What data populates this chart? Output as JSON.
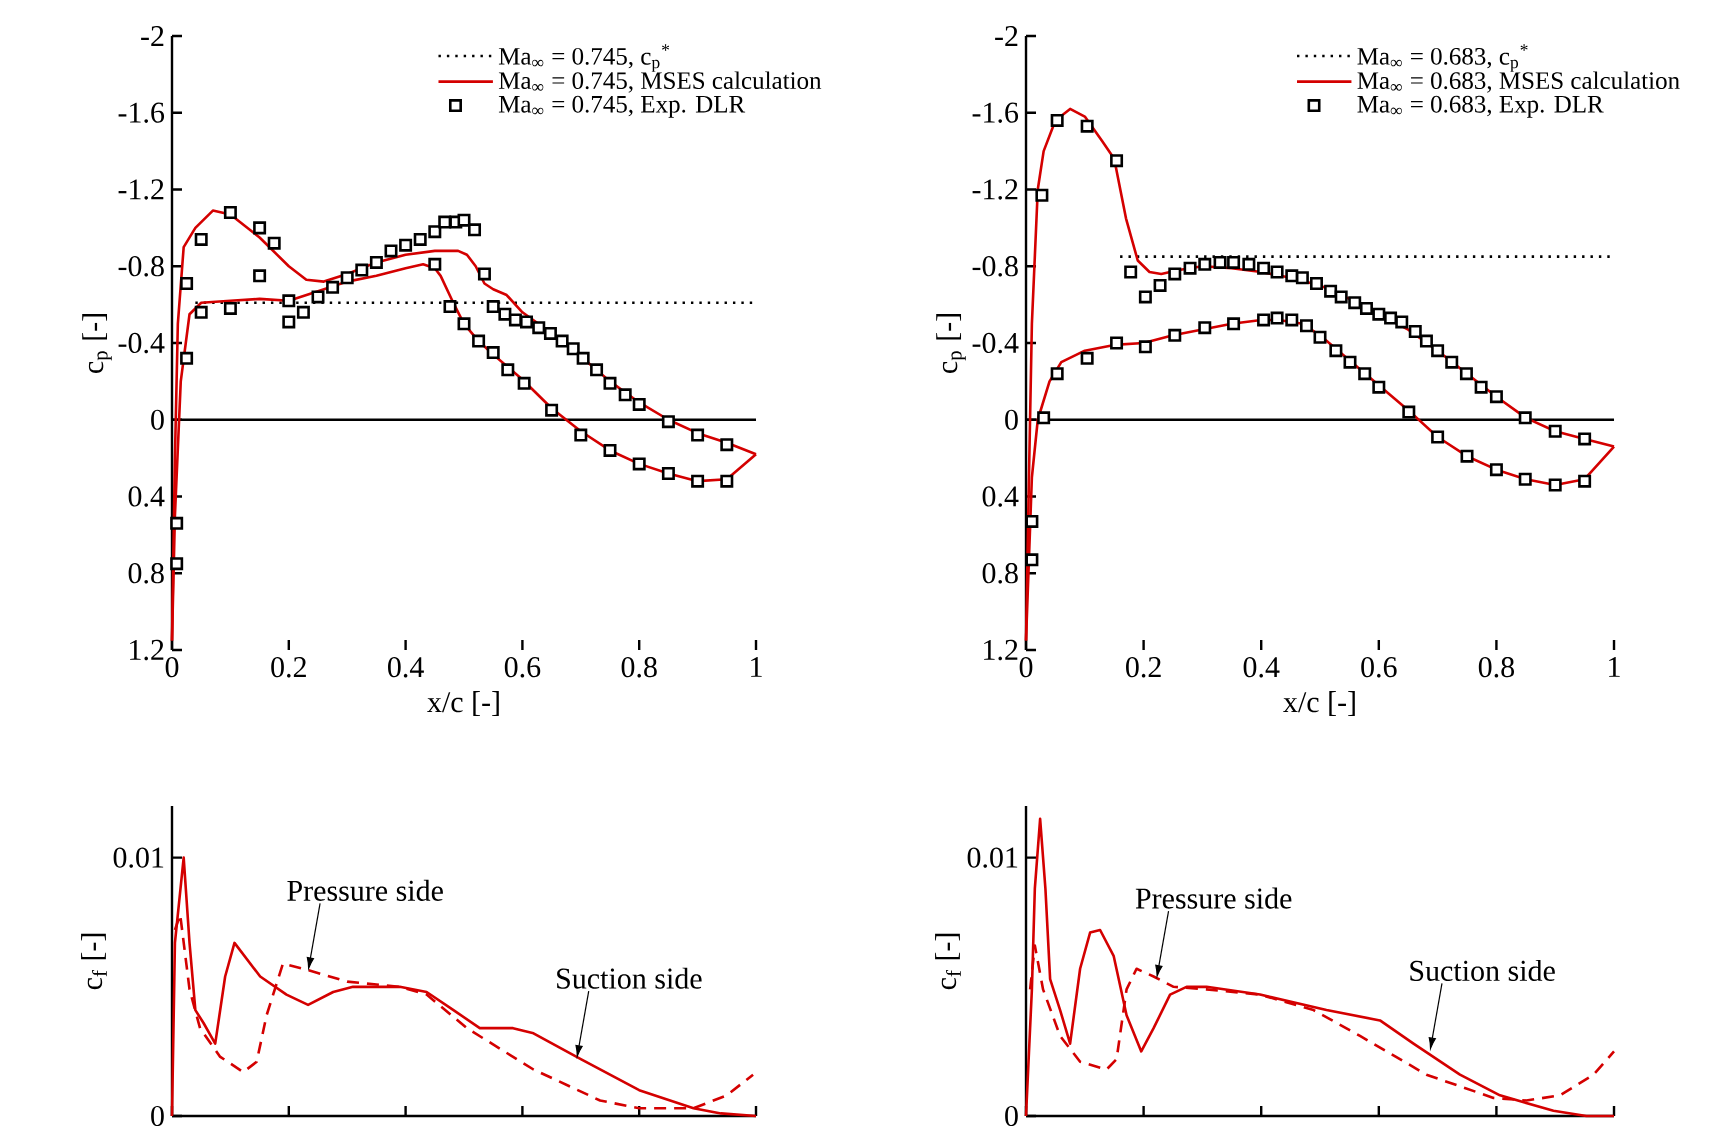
{
  "chart_data": [
    {
      "type": "line",
      "xlabel": "x/c [-]",
      "ylabel": "c$_{p}$ [-]",
      "xlim": [
        0,
        1
      ],
      "xticks": [
        0,
        0.2,
        0.4,
        0.6,
        0.8,
        1
      ],
      "ylim": [
        1.2,
        -2
      ],
      "yticks": [
        -2,
        -1.6,
        -1.2,
        -0.8,
        -0.4,
        0,
        0.4,
        0.8,
        1.2
      ],
      "legend": "top right",
      "ref_lines": [
        {
          "axis": "y",
          "value": 0,
          "color": "#000000"
        }
      ],
      "series": [
        {
          "name": "Ma$_{∞}$ = 0.745, c$_{p}$$^{*}$",
          "type": "line",
          "line_style": "dotted",
          "color": "#000000",
          "x": [
            0.04,
            1
          ],
          "values": [
            -0.61,
            -0.61
          ]
        },
        {
          "name": "Ma$_{∞}$ = 0.745, MSES calculation",
          "type": "line",
          "line_style": "solid",
          "color": "#d40000",
          "x": [
            0.0,
            0.005,
            0.01,
            0.02,
            0.04,
            0.07,
            0.1,
            0.15,
            0.2,
            0.23,
            0.26,
            0.3,
            0.35,
            0.4,
            0.45,
            0.49,
            0.505,
            0.52,
            0.535,
            0.55,
            0.573,
            0.6,
            0.65,
            0.7,
            0.75,
            0.8,
            0.85,
            0.9,
            0.95,
            1.0
          ],
          "values": [
            1.15,
            0.2,
            -0.5,
            -0.9,
            -1.0,
            -1.09,
            -1.07,
            -0.95,
            -0.8,
            -0.73,
            -0.72,
            -0.76,
            -0.82,
            -0.86,
            -0.88,
            -0.88,
            -0.86,
            -0.8,
            -0.71,
            -0.68,
            -0.65,
            -0.56,
            -0.45,
            -0.33,
            -0.2,
            -0.09,
            0.0,
            0.07,
            0.12,
            0.18
          ]
        },
        {
          "type": "line",
          "line_style": "solid",
          "color": "#d40000",
          "x": [
            0.0,
            0.005,
            0.015,
            0.03,
            0.05,
            0.1,
            0.15,
            0.2,
            0.25,
            0.3,
            0.35,
            0.4,
            0.43,
            0.45,
            0.46,
            0.48,
            0.5,
            0.525,
            0.55,
            0.6,
            0.65,
            0.7,
            0.75,
            0.8,
            0.85,
            0.9,
            0.95,
            1.0
          ],
          "values": [
            1.15,
            0.5,
            -0.2,
            -0.55,
            -0.61,
            -0.62,
            -0.63,
            -0.62,
            -0.67,
            -0.72,
            -0.75,
            -0.79,
            -0.81,
            -0.79,
            -0.75,
            -0.62,
            -0.5,
            -0.41,
            -0.34,
            -0.21,
            -0.06,
            0.06,
            0.16,
            0.23,
            0.28,
            0.32,
            0.31,
            0.18
          ]
        },
        {
          "name": "Ma$_{∞}$ = 0.745, Exp. DLR",
          "type": "scatter",
          "marker": "square",
          "color": "#000000",
          "x": [
            0.008,
            0.008,
            0.025,
            0.025,
            0.05,
            0.05,
            0.1,
            0.1,
            0.15,
            0.15,
            0.175,
            0.2,
            0.2,
            0.225,
            0.25,
            0.275,
            0.3,
            0.325,
            0.35,
            0.375,
            0.4,
            0.425,
            0.45,
            0.45,
            0.467,
            0.486,
            0.5,
            0.518,
            0.476,
            0.5,
            0.525,
            0.55,
            0.575,
            0.603,
            0.65,
            0.7,
            0.75,
            0.8,
            0.85,
            0.9,
            0.95,
            0.535,
            0.55,
            0.57,
            0.588,
            0.607,
            0.628,
            0.648,
            0.668,
            0.687,
            0.704,
            0.727,
            0.75,
            0.776,
            0.8,
            0.85,
            0.9,
            0.95
          ],
          "values": [
            0.75,
            0.54,
            -0.32,
            -0.71,
            -0.94,
            -0.56,
            -1.08,
            -0.58,
            -1.0,
            -0.75,
            -0.92,
            -0.62,
            -0.51,
            -0.56,
            -0.64,
            -0.69,
            -0.74,
            -0.78,
            -0.82,
            -0.88,
            -0.91,
            -0.94,
            -0.98,
            -0.81,
            -1.03,
            -1.03,
            -1.04,
            -0.99,
            -0.59,
            -0.5,
            -0.41,
            -0.35,
            -0.26,
            -0.19,
            -0.05,
            0.08,
            0.16,
            0.23,
            0.28,
            0.32,
            0.32,
            -0.76,
            -0.59,
            -0.55,
            -0.52,
            -0.51,
            -0.48,
            -0.45,
            -0.41,
            -0.37,
            -0.32,
            -0.26,
            -0.19,
            -0.13,
            -0.08,
            0.01,
            0.08,
            0.13
          ]
        }
      ]
    },
    {
      "type": "line",
      "xlabel": "x/c [-]",
      "ylabel": "c$_{p}$ [-]",
      "xlim": [
        0,
        1
      ],
      "xticks": [
        0,
        0.2,
        0.4,
        0.6,
        0.8,
        1
      ],
      "ylim": [
        1.2,
        -2
      ],
      "yticks": [
        -2,
        -1.6,
        -1.2,
        -0.8,
        -0.4,
        0,
        0.4,
        0.8,
        1.2
      ],
      "legend": "top right",
      "ref_lines": [
        {
          "axis": "y",
          "value": 0,
          "color": "#000000"
        }
      ],
      "series": [
        {
          "name": "Ma$_{∞}$ = 0.683, c$_{p}$$^{*}$",
          "type": "line",
          "line_style": "dotted",
          "color": "#000000",
          "x": [
            0.16,
            1
          ],
          "values": [
            -0.85,
            -0.85
          ]
        },
        {
          "name": "Ma$_{∞}$ = 0.683, MSES calculation",
          "type": "line",
          "line_style": "solid",
          "color": "#d40000",
          "x": [
            0.0,
            0.005,
            0.01,
            0.02,
            0.03,
            0.05,
            0.075,
            0.1,
            0.13,
            0.15,
            0.17,
            0.19,
            0.21,
            0.23,
            0.26,
            0.3,
            0.35,
            0.4,
            0.45,
            0.5,
            0.55,
            0.6,
            0.65,
            0.7,
            0.75,
            0.8,
            0.85,
            0.9,
            0.95,
            1.0
          ],
          "values": [
            1.15,
            0.3,
            -0.5,
            -1.2,
            -1.4,
            -1.56,
            -1.62,
            -1.58,
            -1.45,
            -1.36,
            -1.05,
            -0.83,
            -0.77,
            -0.76,
            -0.78,
            -0.8,
            -0.79,
            -0.77,
            -0.74,
            -0.7,
            -0.63,
            -0.55,
            -0.47,
            -0.36,
            -0.24,
            -0.12,
            -0.01,
            0.06,
            0.1,
            0.14
          ]
        },
        {
          "type": "line",
          "line_style": "solid",
          "color": "#d40000",
          "x": [
            0.0,
            0.01,
            0.02,
            0.04,
            0.06,
            0.1,
            0.15,
            0.2,
            0.25,
            0.3,
            0.35,
            0.4,
            0.43,
            0.47,
            0.5,
            0.55,
            0.6,
            0.65,
            0.7,
            0.75,
            0.8,
            0.85,
            0.9,
            0.95,
            1.0
          ],
          "values": [
            1.15,
            0.3,
            0.0,
            -0.2,
            -0.3,
            -0.36,
            -0.39,
            -0.4,
            -0.44,
            -0.47,
            -0.5,
            -0.52,
            -0.52,
            -0.5,
            -0.44,
            -0.31,
            -0.18,
            -0.05,
            0.09,
            0.19,
            0.26,
            0.31,
            0.34,
            0.31,
            0.14
          ]
        },
        {
          "name": "Ma$_{∞}$ = 0.683, Exp. DLR",
          "type": "scatter",
          "marker": "square",
          "color": "#000000",
          "x": [
            0.01,
            0.01,
            0.03,
            0.027,
            0.053,
            0.104,
            0.154,
            0.178,
            0.203,
            0.228,
            0.253,
            0.279,
            0.304,
            0.33,
            0.353,
            0.379,
            0.404,
            0.427,
            0.452,
            0.47,
            0.494,
            0.518,
            0.536,
            0.559,
            0.579,
            0.6,
            0.62,
            0.639,
            0.662,
            0.681,
            0.7,
            0.724,
            0.749,
            0.774,
            0.8,
            0.849,
            0.9,
            0.95,
            0.053,
            0.104,
            0.154,
            0.203,
            0.253,
            0.304,
            0.353,
            0.404,
            0.427,
            0.452,
            0.477,
            0.5,
            0.527,
            0.551,
            0.576,
            0.6,
            0.651,
            0.7,
            0.75,
            0.8,
            0.849,
            0.9,
            0.95
          ],
          "values": [
            0.73,
            0.53,
            -0.01,
            -1.17,
            -1.56,
            -1.53,
            -1.35,
            -0.77,
            -0.64,
            -0.7,
            -0.76,
            -0.79,
            -0.81,
            -0.82,
            -0.82,
            -0.81,
            -0.79,
            -0.77,
            -0.75,
            -0.74,
            -0.71,
            -0.67,
            -0.64,
            -0.61,
            -0.58,
            -0.55,
            -0.53,
            -0.51,
            -0.46,
            -0.41,
            -0.36,
            -0.3,
            -0.24,
            -0.17,
            -0.12,
            -0.01,
            0.06,
            0.1,
            -0.24,
            -0.32,
            -0.4,
            -0.38,
            -0.44,
            -0.48,
            -0.5,
            -0.52,
            -0.53,
            -0.52,
            -0.49,
            -0.43,
            -0.36,
            -0.3,
            -0.24,
            -0.17,
            -0.04,
            0.09,
            0.19,
            0.26,
            0.31,
            0.34,
            0.32
          ]
        }
      ]
    },
    {
      "type": "line",
      "ylabel": "c$_{f}$ [-]",
      "xlim": [
        0,
        1
      ],
      "xticks": [
        0,
        0.2,
        0.4,
        0.6,
        0.8,
        1
      ],
      "ylim": [
        0,
        0.012
      ],
      "yticks": [
        0,
        0.01
      ],
      "tick_labels": "y",
      "annotations": [
        {
          "text": "Pressure side",
          "x": 0.233,
          "y": 0.0056
        },
        {
          "text": "Suction side",
          "x": 0.693,
          "y": 0.0022
        }
      ],
      "series": [
        {
          "type": "line",
          "line_style": "solid",
          "color": "#d40000",
          "x": [
            0,
            0.005,
            0.02,
            0.03,
            0.04,
            0.054,
            0.074,
            0.091,
            0.107,
            0.151,
            0.196,
            0.233,
            0.276,
            0.31,
            0.39,
            0.436,
            0.482,
            0.527,
            0.584,
            0.619,
            0.7,
            0.8,
            0.893,
            0.94,
            1.0
          ],
          "values": [
            0,
            0.0067,
            0.01,
            0.0067,
            0.0041,
            0.0036,
            0.0028,
            0.0054,
            0.0067,
            0.0054,
            0.0047,
            0.0043,
            0.0048,
            0.005,
            0.005,
            0.0048,
            0.0041,
            0.0034,
            0.0034,
            0.0032,
            0.0022,
            0.001,
            0.0003,
            0.0001,
            0
          ]
        },
        {
          "type": "line",
          "line_style": "dashed",
          "color": "#d40000",
          "x": [
            0.005,
            0.014,
            0.03,
            0.048,
            0.082,
            0.122,
            0.145,
            0.162,
            0.19,
            0.225,
            0.3,
            0.39,
            0.436,
            0.505,
            0.619,
            0.733,
            0.8,
            0.893,
            0.95,
            0.995
          ],
          "values": [
            0.0072,
            0.0078,
            0.0049,
            0.0034,
            0.0023,
            0.0017,
            0.0021,
            0.0039,
            0.0059,
            0.0057,
            0.0052,
            0.005,
            0.0047,
            0.0034,
            0.0018,
            0.0006,
            0.0003,
            0.0003,
            0.0008,
            0.0016
          ]
        }
      ]
    },
    {
      "type": "line",
      "ylabel": "c$_{f}$ [-]",
      "xlim": [
        0,
        1
      ],
      "xticks": [
        0,
        0.2,
        0.4,
        0.6,
        0.8,
        1
      ],
      "ylim": [
        0,
        0.012
      ],
      "yticks": [
        0,
        0.01
      ],
      "tick_labels": "y",
      "annotations": [
        {
          "text": "Pressure side",
          "x": 0.222,
          "y": 0.0053
        },
        {
          "text": "Suction side",
          "x": 0.687,
          "y": 0.0025
        }
      ],
      "series": [
        {
          "type": "line",
          "line_style": "solid",
          "color": "#d40000",
          "x": [
            0,
            0.01,
            0.015,
            0.024,
            0.033,
            0.041,
            0.058,
            0.075,
            0.092,
            0.109,
            0.126,
            0.149,
            0.171,
            0.196,
            0.217,
            0.245,
            0.273,
            0.307,
            0.398,
            0.511,
            0.602,
            0.659,
            0.738,
            0.806,
            0.897,
            0.953,
            1.0
          ],
          "values": [
            0,
            0.0049,
            0.0088,
            0.0115,
            0.0088,
            0.0053,
            0.0041,
            0.0028,
            0.0057,
            0.0071,
            0.0072,
            0.0062,
            0.0039,
            0.0025,
            0.0034,
            0.0047,
            0.005,
            0.005,
            0.0047,
            0.0041,
            0.0037,
            0.0028,
            0.0016,
            0.0008,
            0.0002,
            0,
            0
          ]
        },
        {
          "type": "line",
          "line_style": "dashed",
          "color": "#d40000",
          "x": [
            0.007,
            0.015,
            0.029,
            0.058,
            0.092,
            0.137,
            0.154,
            0.171,
            0.188,
            0.217,
            0.251,
            0.307,
            0.398,
            0.489,
            0.568,
            0.681,
            0.795,
            0.851,
            0.908,
            0.965,
            1.0
          ],
          "values": [
            0.0049,
            0.0066,
            0.0049,
            0.0031,
            0.0021,
            0.0018,
            0.0022,
            0.0049,
            0.0057,
            0.0054,
            0.005,
            0.0049,
            0.0047,
            0.0041,
            0.0031,
            0.0016,
            0.0007,
            0.0006,
            0.0008,
            0.0016,
            0.0025
          ]
        }
      ]
    }
  ]
}
